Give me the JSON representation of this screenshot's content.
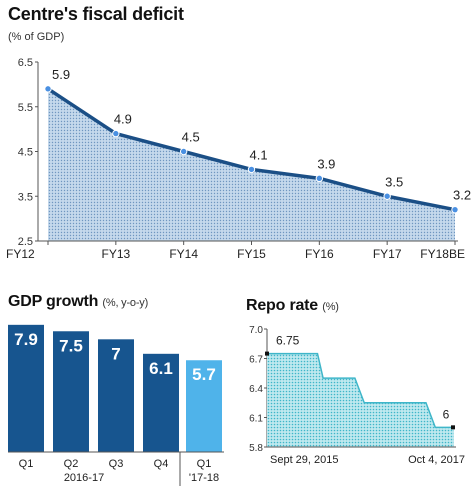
{
  "colors": {
    "line": "#1b4f86",
    "area": "#c5d9ec",
    "area_pattern": "#6f96c0",
    "marker": "#4a90e2",
    "bar_dark": "#17558f",
    "bar_light": "#4fb3ea",
    "repo_area": "#3fb6c9"
  },
  "chart_data": [
    {
      "type": "area",
      "title": "Centre's fiscal deficit",
      "subtitle": "(% of GDP)",
      "categories": [
        "FY12",
        "FY13",
        "FY14",
        "FY15",
        "FY16",
        "FY17",
        "FY18BE"
      ],
      "values": [
        5.9,
        4.9,
        4.5,
        4.1,
        3.9,
        3.5,
        3.2
      ],
      "data_labels": [
        "5.9",
        "4.9",
        "4.5",
        "4.1",
        "3.9",
        "3.5",
        "3.2"
      ],
      "ylim": [
        2.5,
        6.5
      ],
      "yticks": [
        "6.5",
        "5.5",
        "4.5",
        "3.5",
        "2.5"
      ],
      "ytick_values": [
        6.5,
        5.5,
        4.5,
        3.5,
        2.5
      ]
    },
    {
      "type": "bar",
      "title": "GDP growth",
      "subtitle": "(%, y-o-y)",
      "categories": [
        "Q1",
        "Q2",
        "Q3",
        "Q4",
        "Q1"
      ],
      "group_labels": [
        "2016-17",
        "'17-18"
      ],
      "values": [
        7.9,
        7.5,
        7,
        6.1,
        5.7
      ],
      "data_labels": [
        "7.9",
        "7.5",
        "7",
        "6.1",
        "5.7"
      ],
      "ylim": [
        0,
        8.2
      ]
    },
    {
      "type": "area",
      "title": "Repo rate",
      "subtitle": "(%)",
      "x": [
        "Sept 29, 2015",
        "Oct 4, 2017"
      ],
      "steps": [
        6.75,
        6.5,
        6.25,
        6.0
      ],
      "start_label": "6.75",
      "end_label": "6",
      "yticks": [
        "7.0",
        "6.7",
        "6.4",
        "6.1",
        "5.8"
      ],
      "ytick_values": [
        7.0,
        6.7,
        6.4,
        6.1,
        5.8
      ],
      "ylim": [
        5.8,
        7.0
      ]
    }
  ]
}
